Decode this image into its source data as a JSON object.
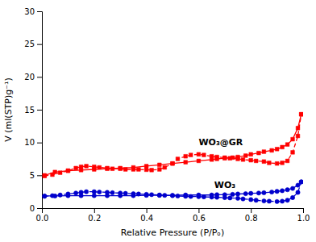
{
  "chart_data": {
    "type": "line",
    "xlabel": "Relative Pressure (P/Pₒ)",
    "ylabel": "V (ml(STP)g⁻¹)",
    "xlim": [
      0.0,
      1.0
    ],
    "ylim": [
      0,
      30
    ],
    "xticks": [
      {
        "value": 0.0,
        "label": "0.0"
      },
      0.2,
      0.4,
      0.6,
      0.8,
      {
        "value": 1.0,
        "label": "1.0"
      }
    ],
    "yticks": [
      0,
      5,
      10,
      15,
      20,
      25,
      30
    ],
    "grid": false,
    "series": [
      {
        "color": "#ff0000",
        "marker": "square",
        "line_style": "dashed",
        "x": [
          0.01,
          0.04,
          0.07,
          0.1,
          0.13,
          0.15,
          0.17,
          0.2,
          0.22,
          0.25,
          0.27,
          0.3,
          0.32,
          0.35,
          0.37,
          0.4,
          0.42,
          0.45,
          0.47,
          0.5,
          0.52,
          0.55,
          0.57,
          0.6,
          0.62,
          0.65,
          0.67,
          0.7,
          0.72,
          0.75,
          0.77,
          0.8,
          0.82,
          0.85,
          0.87,
          0.9,
          0.92,
          0.94,
          0.96,
          0.98,
          0.993
        ],
        "values": [
          4.9,
          5.1,
          5.4,
          5.7,
          6.1,
          6.3,
          6.4,
          6.3,
          6.2,
          6.1,
          6.0,
          6.0,
          5.9,
          5.9,
          5.9,
          5.85,
          5.8,
          5.9,
          6.2,
          6.8,
          7.5,
          7.9,
          8.1,
          8.2,
          8.1,
          7.9,
          7.8,
          7.7,
          7.6,
          7.5,
          7.4,
          7.3,
          7.2,
          7.1,
          6.9,
          6.8,
          6.9,
          7.2,
          8.5,
          11.0,
          14.3
        ]
      },
      {
        "color": "#ff0000",
        "marker": "square",
        "line_style": "solid",
        "x": [
          0.993,
          0.98,
          0.96,
          0.94,
          0.92,
          0.9,
          0.88,
          0.85,
          0.83,
          0.8,
          0.78,
          0.75,
          0.73,
          0.7,
          0.67,
          0.65,
          0.6,
          0.55,
          0.5,
          0.45,
          0.4,
          0.35,
          0.3,
          0.25,
          0.2,
          0.15,
          0.1,
          0.05,
          0.01
        ],
        "values": [
          14.3,
          12.2,
          10.5,
          9.7,
          9.3,
          9.0,
          8.8,
          8.6,
          8.4,
          8.2,
          8.0,
          7.8,
          7.7,
          7.6,
          7.5,
          7.4,
          7.2,
          7.0,
          6.8,
          6.6,
          6.4,
          6.2,
          6.1,
          6.0,
          5.9,
          5.8,
          5.7,
          5.5,
          5.0
        ]
      },
      {
        "color": "#0000cc",
        "marker": "circle",
        "line_style": "dashed",
        "x": [
          0.01,
          0.04,
          0.07,
          0.1,
          0.13,
          0.15,
          0.17,
          0.2,
          0.22,
          0.25,
          0.27,
          0.3,
          0.32,
          0.35,
          0.37,
          0.4,
          0.42,
          0.45,
          0.47,
          0.5,
          0.52,
          0.55,
          0.57,
          0.6,
          0.62,
          0.65,
          0.67,
          0.7,
          0.72,
          0.75,
          0.77,
          0.8,
          0.82,
          0.85,
          0.87,
          0.9,
          0.92,
          0.94,
          0.96,
          0.98,
          0.993
        ],
        "values": [
          1.8,
          1.9,
          2.0,
          2.15,
          2.3,
          2.4,
          2.5,
          2.5,
          2.45,
          2.4,
          2.35,
          2.3,
          2.25,
          2.2,
          2.15,
          2.1,
          2.05,
          2.0,
          1.95,
          1.9,
          1.85,
          1.8,
          1.78,
          1.75,
          1.72,
          1.68,
          1.65,
          1.6,
          1.55,
          1.5,
          1.4,
          1.3,
          1.2,
          1.1,
          1.05,
          1.0,
          1.05,
          1.2,
          1.6,
          2.4,
          4.0
        ]
      },
      {
        "color": "#0000cc",
        "marker": "circle",
        "line_style": "solid",
        "x": [
          0.993,
          0.98,
          0.96,
          0.94,
          0.92,
          0.9,
          0.88,
          0.85,
          0.83,
          0.8,
          0.78,
          0.75,
          0.73,
          0.7,
          0.67,
          0.65,
          0.6,
          0.55,
          0.5,
          0.45,
          0.4,
          0.35,
          0.3,
          0.25,
          0.2,
          0.15,
          0.1,
          0.05,
          0.01
        ],
        "values": [
          4.0,
          3.5,
          3.0,
          2.8,
          2.65,
          2.55,
          2.45,
          2.35,
          2.3,
          2.25,
          2.2,
          2.15,
          2.1,
          2.05,
          2.05,
          2.0,
          2.0,
          2.0,
          1.95,
          1.95,
          1.95,
          1.9,
          1.9,
          1.9,
          1.9,
          1.9,
          1.9,
          1.85,
          1.85
        ]
      }
    ],
    "annotations": [
      {
        "text": "WO₃@GR",
        "x": 0.6,
        "y": 9.6
      },
      {
        "text": "WO₃",
        "x": 0.66,
        "y": 3.1
      }
    ]
  }
}
